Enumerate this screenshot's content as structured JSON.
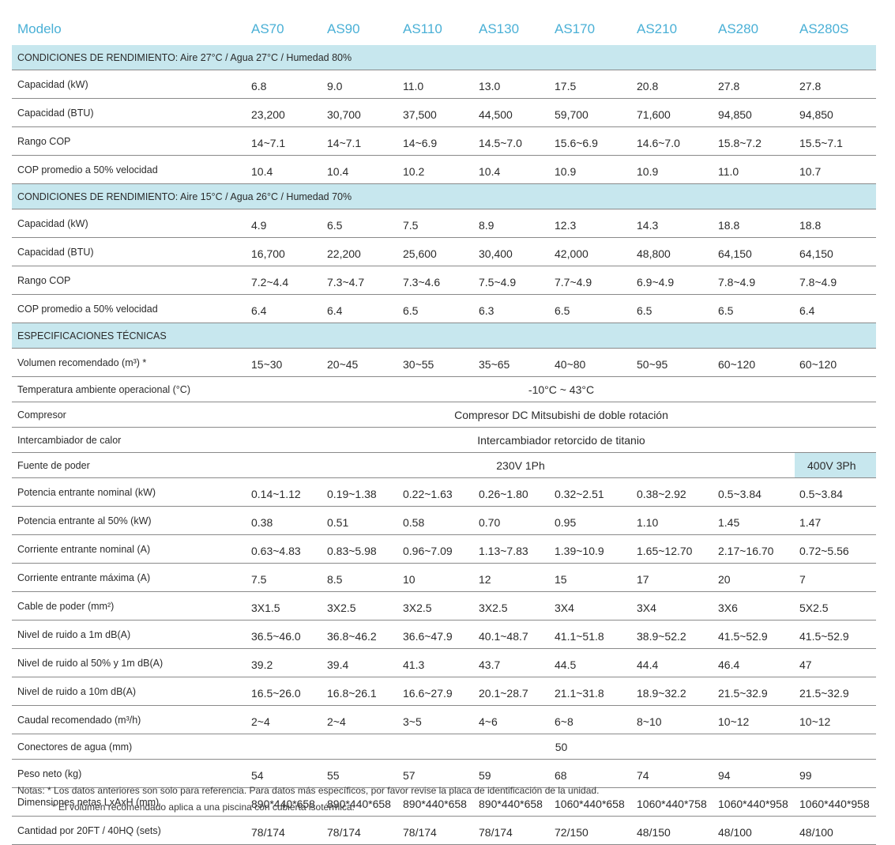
{
  "header": {
    "label": "Modelo",
    "models": [
      "AS70",
      "AS90",
      "AS110",
      "AS130",
      "AS170",
      "AS210",
      "AS280",
      "AS280S"
    ]
  },
  "sections": [
    {
      "title": "CONDICIONES DE RENDIMIENTO: Aire 27°C / Agua 27°C / Humedad 80%",
      "rows": [
        {
          "label": "Capacidad  (kW)",
          "values": [
            "6.8",
            "9.0",
            "11.0",
            "13.0",
            "17.5",
            "20.8",
            "27.8",
            "27.8"
          ]
        },
        {
          "label": "Capacidad  (BTU)",
          "values": [
            "23,200",
            "30,700",
            "37,500",
            "44,500",
            "59,700",
            "71,600",
            "94,850",
            "94,850"
          ]
        },
        {
          "label": "Rango COP",
          "values": [
            "14~7.1",
            "14~7.1",
            "14~6.9",
            "14.5~7.0",
            "15.6~6.9",
            "14.6~7.0",
            "15.8~7.2",
            "15.5~7.1"
          ]
        },
        {
          "label": "COP promedio a 50% velocidad",
          "values": [
            "10.4",
            "10.4",
            "10.2",
            "10.4",
            "10.9",
            "10.9",
            "11.0",
            "10.7"
          ]
        }
      ]
    },
    {
      "title": "CONDICIONES DE RENDIMIENTO: Aire 15°C / Agua 26°C / Humedad 70%",
      "rows": [
        {
          "label": "Capacidad  (kW)",
          "values": [
            "4.9",
            "6.5",
            "7.5",
            "8.9",
            "12.3",
            "14.3",
            "18.8",
            "18.8"
          ]
        },
        {
          "label": "Capacidad  (BTU)",
          "values": [
            "16,700",
            "22,200",
            "25,600",
            "30,400",
            "42,000",
            "48,800",
            "64,150",
            "64,150"
          ]
        },
        {
          "label": "Rango COP",
          "values": [
            "7.2~4.4",
            "7.3~4.7",
            "7.3~4.6",
            "7.5~4.9",
            "7.7~4.9",
            "6.9~4.9",
            "7.8~4.9",
            "7.8~4.9"
          ]
        },
        {
          "label": "COP promedio a 50% velocidad",
          "values": [
            "6.4",
            "6.4",
            "6.5",
            "6.3",
            "6.5",
            "6.5",
            "6.5",
            "6.4"
          ]
        }
      ]
    },
    {
      "title": "ESPECIFICACIONES TÉCNICAS",
      "rows": [
        {
          "label": "Volumen recomendado  (m³) *",
          "values": [
            "15~30",
            "20~45",
            "30~55",
            "35~65",
            "40~80",
            "50~95",
            "60~120",
            "60~120"
          ]
        },
        {
          "label": "Temperatura ambiente operacional  (°C)",
          "span": "-10°C ~ 43°C"
        },
        {
          "label": "Compresor",
          "span": "Compresor DC Mitsubishi de doble rotación"
        },
        {
          "label": "Intercambiador de calor",
          "span": "Intercambiador retorcido de titanio"
        },
        {
          "label": "Fuente de poder",
          "span": "230V 1Ph",
          "last": "400V 3Ph"
        },
        {
          "label": "Potencia entrante nominal  (kW)",
          "values": [
            "0.14~1.12",
            "0.19~1.38",
            "0.22~1.63",
            "0.26~1.80",
            "0.32~2.51",
            "0.38~2.92",
            "0.5~3.84",
            "0.5~3.84"
          ]
        },
        {
          "label": "Potencia entrante al 50%  (kW)",
          "values": [
            "0.38",
            "0.51",
            "0.58",
            "0.70",
            "0.95",
            "1.10",
            "1.45",
            "1.47"
          ]
        },
        {
          "label": "Corriente entrante nominal  (A)",
          "values": [
            "0.63~4.83",
            "0.83~5.98",
            "0.96~7.09",
            "1.13~7.83",
            "1.39~10.9",
            "1.65~12.70",
            "2.17~16.70",
            "0.72~5.56"
          ]
        },
        {
          "label": "Corriente entrante máxima  (A)",
          "values": [
            "7.5",
            "8.5",
            "10",
            "12",
            "15",
            "17",
            "20",
            "7"
          ]
        },
        {
          "label": "Cable de poder  (mm²)",
          "values": [
            "3X1.5",
            "3X2.5",
            "3X2.5",
            "3X2.5",
            "3X4",
            "3X4",
            "3X6",
            "5X2.5"
          ]
        },
        {
          "label": "Nivel de ruido a 1m  dB(A)",
          "values": [
            "36.5~46.0",
            "36.8~46.2",
            "36.6~47.9",
            "40.1~48.7",
            "41.1~51.8",
            "38.9~52.2",
            "41.5~52.9",
            "41.5~52.9"
          ]
        },
        {
          "label": "Nivel de ruido al 50% y 1m  dB(A)",
          "values": [
            "39.2",
            "39.4",
            "41.3",
            "43.7",
            "44.5",
            "44.4",
            "46.4",
            "47"
          ]
        },
        {
          "label": "Nivel de ruido a 10m  dB(A)",
          "values": [
            "16.5~26.0",
            "16.8~26.1",
            "16.6~27.9",
            "20.1~28.7",
            "21.1~31.8",
            "18.9~32.2",
            "21.5~32.9",
            "21.5~32.9"
          ]
        },
        {
          "label": "Caudal recomendado  (m³/h)",
          "values": [
            "2~4",
            "2~4",
            "3~5",
            "4~6",
            "6~8",
            "8~10",
            "10~12",
            "10~12"
          ]
        },
        {
          "label": "Conectores de agua  (mm)",
          "span": "50"
        },
        {
          "label": "Peso neto  (kg)",
          "values": [
            "54",
            "55",
            "57",
            "59",
            "68",
            "74",
            "94",
            "99"
          ]
        },
        {
          "label": "Dimensiones netas LxAxH  (mm)",
          "values": [
            "890*440*658",
            "890*440*658",
            "890*440*658",
            "890*440*658",
            "1060*440*658",
            "1060*440*758",
            "1060*440*958",
            "1060*440*958"
          ]
        },
        {
          "label": "Cantidad por 20FT / 40HQ  (sets)",
          "values": [
            "78/174",
            "78/174",
            "78/174",
            "78/174",
            "72/150",
            "48/150",
            "48/100",
            "48/100"
          ]
        }
      ]
    }
  ],
  "notes": {
    "line1": "Notas:  * Los datos anteriores son solo para referencia. Para datos más específicos, por favor revise la placa de identificación de la unidad.",
    "line2": "* El volumen recomendado aplica a una piscina con cubierta isotérmica."
  },
  "colors": {
    "header_text": "#4ab0d6",
    "section_band": "#c7e7ee",
    "row_rule": "#8a8a8a"
  }
}
